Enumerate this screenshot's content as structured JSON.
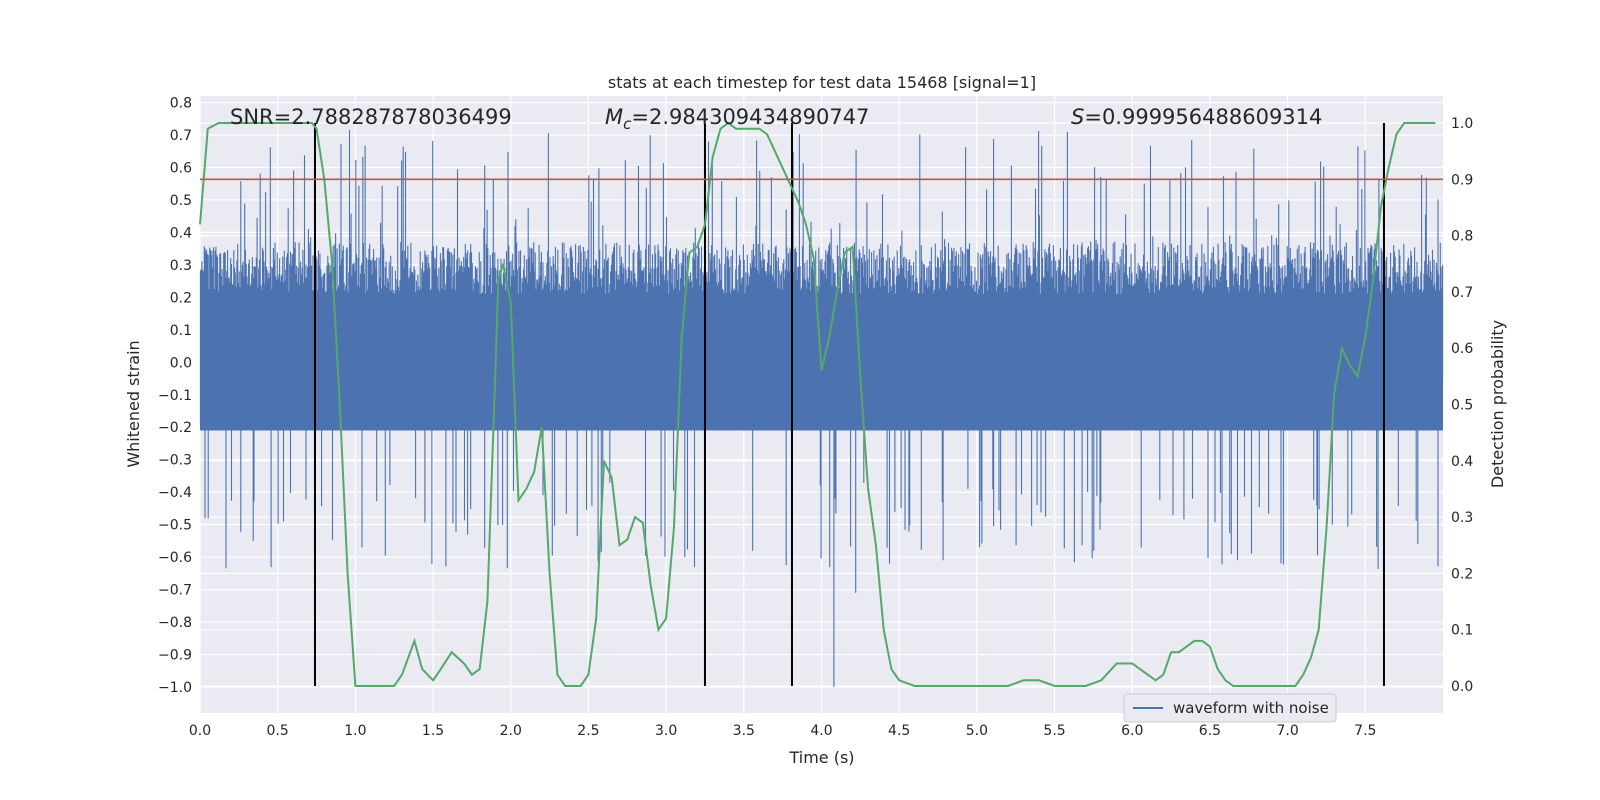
{
  "chart_data": {
    "type": "line",
    "title": "stats at each timestep for test data 15468 [signal=1]",
    "xlabel": "Time (s)",
    "ylabel_left": "Whitened strain",
    "ylabel_right": "Detection probability",
    "xlim": [
      0.0,
      8.0
    ],
    "ylim_left": [
      -1.08,
      0.82
    ],
    "ylim_right": [
      -0.048,
      1.048
    ],
    "x_ticks": [
      "0.0",
      "0.5",
      "1.0",
      "1.5",
      "2.0",
      "2.5",
      "3.0",
      "3.5",
      "4.0",
      "4.5",
      "5.0",
      "5.5",
      "6.0",
      "6.5",
      "7.0",
      "7.5"
    ],
    "y_left_ticks": [
      "0.8",
      "0.7",
      "0.6",
      "0.5",
      "0.4",
      "0.3",
      "0.2",
      "0.1",
      "0.0",
      "−0.1",
      "−0.2",
      "−0.3",
      "−0.4",
      "−0.5",
      "−0.6",
      "−0.7",
      "−0.8",
      "−0.9",
      "−1.0"
    ],
    "y_right_ticks": [
      "1.0",
      "0.9",
      "0.8",
      "0.7",
      "0.6",
      "0.5",
      "0.4",
      "0.3",
      "0.2",
      "0.1",
      "0.0"
    ],
    "grid": true,
    "legend_position": "lower-right",
    "annotations": {
      "snr": "SNR=2.788287878036499",
      "mc_symbol": "M",
      "mc_sub": "c",
      "mc_value": "=2.984309434890747",
      "s_symbol": "S",
      "s_value": "=0.999956488609314"
    },
    "series": [
      {
        "name": "waveform with noise",
        "axis": "left",
        "color": "#4c72b0",
        "kind": "noise",
        "core_band": [
          -0.37,
          0.37
        ],
        "spike_range": [
          -0.64,
          0.72
        ],
        "extreme_negative": [
          {
            "x": 4.08,
            "y": -1.0
          },
          {
            "x": 4.22,
            "y": -0.71
          },
          {
            "x": 3.12,
            "y": -0.6
          }
        ]
      },
      {
        "name": "Detection probability",
        "axis": "right",
        "color": "#55a868",
        "x": [
          0.0,
          0.05,
          0.12,
          0.2,
          0.3,
          0.4,
          0.5,
          0.6,
          0.7,
          0.72,
          0.75,
          0.8,
          0.85,
          0.9,
          0.95,
          1.0,
          1.1,
          1.25,
          1.3,
          1.38,
          1.43,
          1.5,
          1.55,
          1.62,
          1.7,
          1.75,
          1.8,
          1.85,
          1.9,
          1.92,
          1.95,
          2.0,
          2.05,
          2.1,
          2.15,
          2.2,
          2.25,
          2.3,
          2.35,
          2.4,
          2.45,
          2.5,
          2.55,
          2.6,
          2.65,
          2.7,
          2.75,
          2.8,
          2.85,
          2.9,
          2.95,
          3.0,
          3.05,
          3.1,
          3.15,
          3.2,
          3.25,
          3.3,
          3.35,
          3.4,
          3.45,
          3.5,
          3.55,
          3.6,
          3.65,
          3.7,
          3.75,
          3.8,
          3.85,
          3.9,
          3.95,
          4.0,
          4.05,
          4.1,
          4.15,
          4.2,
          4.25,
          4.3,
          4.35,
          4.4,
          4.45,
          4.5,
          4.6,
          4.7,
          4.8,
          4.9,
          5.0,
          5.1,
          5.2,
          5.3,
          5.4,
          5.5,
          5.6,
          5.7,
          5.8,
          5.9,
          6.0,
          6.05,
          6.1,
          6.15,
          6.2,
          6.25,
          6.3,
          6.35,
          6.4,
          6.45,
          6.5,
          6.55,
          6.6,
          6.65,
          6.7,
          6.8,
          6.9,
          7.0,
          7.05,
          7.1,
          7.15,
          7.2,
          7.25,
          7.3,
          7.35,
          7.4,
          7.45,
          7.5,
          7.55,
          7.6,
          7.65,
          7.7,
          7.75,
          7.8,
          7.85,
          7.9,
          7.95
        ],
        "y": [
          0.82,
          0.99,
          1.0,
          1.0,
          1.0,
          1.0,
          1.0,
          1.0,
          1.0,
          1.0,
          0.99,
          0.9,
          0.75,
          0.5,
          0.2,
          0.0,
          0.0,
          0.0,
          0.02,
          0.08,
          0.03,
          0.01,
          0.03,
          0.06,
          0.04,
          0.02,
          0.03,
          0.15,
          0.55,
          0.72,
          0.75,
          0.68,
          0.33,
          0.35,
          0.38,
          0.46,
          0.2,
          0.02,
          0.0,
          0.0,
          0.0,
          0.02,
          0.12,
          0.4,
          0.37,
          0.25,
          0.26,
          0.3,
          0.29,
          0.18,
          0.1,
          0.12,
          0.28,
          0.62,
          0.77,
          0.78,
          0.82,
          0.94,
          0.99,
          1.0,
          0.99,
          0.99,
          0.99,
          0.99,
          0.98,
          0.95,
          0.92,
          0.89,
          0.86,
          0.82,
          0.76,
          0.56,
          0.62,
          0.7,
          0.77,
          0.78,
          0.55,
          0.35,
          0.25,
          0.1,
          0.03,
          0.01,
          0.0,
          0.0,
          0.0,
          0.0,
          0.0,
          0.0,
          0.0,
          0.01,
          0.01,
          0.0,
          0.0,
          0.0,
          0.01,
          0.04,
          0.04,
          0.03,
          0.02,
          0.01,
          0.02,
          0.06,
          0.06,
          0.07,
          0.08,
          0.08,
          0.07,
          0.03,
          0.01,
          0.0,
          0.0,
          0.0,
          0.0,
          0.0,
          0.0,
          0.02,
          0.05,
          0.1,
          0.28,
          0.52,
          0.6,
          0.57,
          0.55,
          0.62,
          0.72,
          0.85,
          0.92,
          0.98,
          1.0,
          1.0,
          1.0,
          1.0,
          1.0
        ]
      }
    ],
    "threshold_line": {
      "axis": "right",
      "value": 0.9,
      "color": "#c44e52"
    },
    "vertical_markers": {
      "x": [
        0.74,
        3.25,
        3.81,
        7.62
      ],
      "y_range_right": [
        0.0,
        1.0
      ],
      "color": "#000000"
    },
    "legend": {
      "label": "waveform with noise",
      "color": "#4c72b0"
    }
  }
}
